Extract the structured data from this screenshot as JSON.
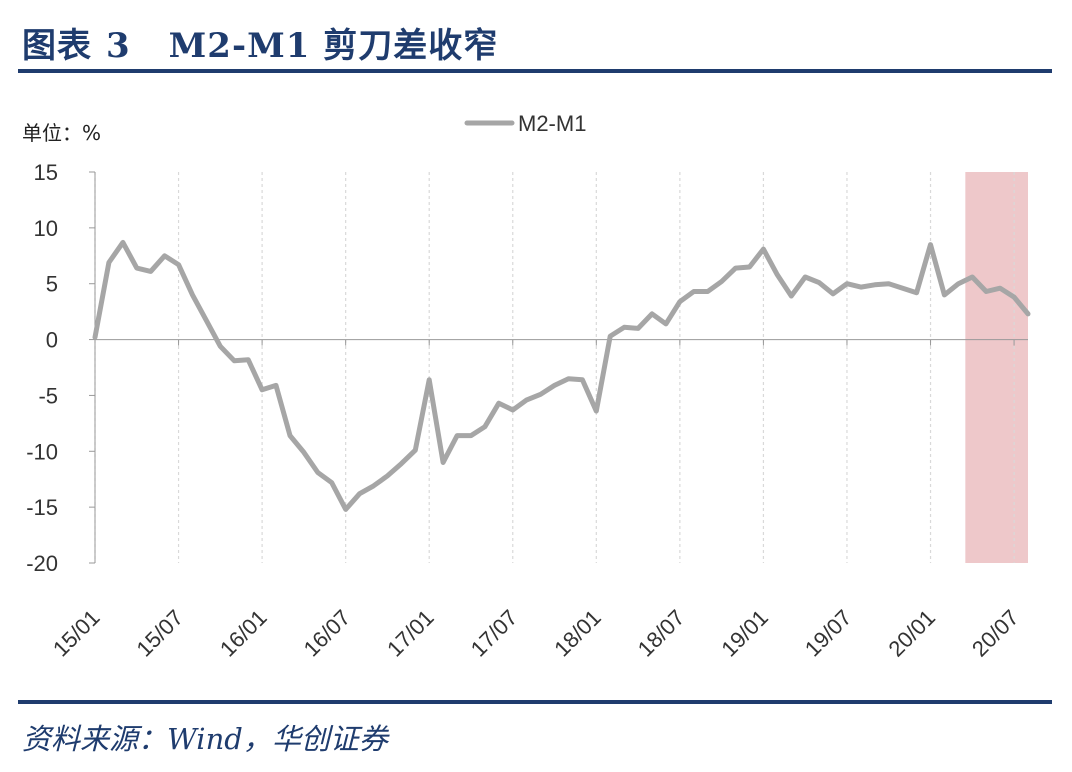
{
  "header": {
    "figure_label": "图表",
    "figure_number": "3",
    "title": "M2-M1 剪刀差收窄"
  },
  "footer": {
    "source": "资料来源：Wind，华创证券"
  },
  "colors": {
    "title": "#1f3c6e",
    "line": "#a6a6a6",
    "highlight": "#eec8ca",
    "grid": "#d9d9d9",
    "axis": "#999999"
  },
  "chart_data": {
    "type": "line",
    "title": "",
    "unit_label": "单位：%",
    "xlabel": "",
    "ylabel": "%",
    "ylim": [
      -20,
      15
    ],
    "yticks": [
      15,
      10,
      5,
      0,
      -5,
      -10,
      -15,
      -20
    ],
    "x_tick_labels": [
      "15/01",
      "15/07",
      "16/01",
      "16/07",
      "17/01",
      "17/07",
      "18/01",
      "18/07",
      "19/01",
      "19/07",
      "20/01",
      "20/07"
    ],
    "x_start": "15/01",
    "x_end": "20/08",
    "legend": {
      "entries": [
        "M2-M1"
      ],
      "position": "top-center"
    },
    "grid": {
      "vertical": true,
      "horizontal": false,
      "style": "dashed"
    },
    "highlight_range": {
      "from": "20/04",
      "to": "20/08",
      "description": "shaded period"
    },
    "series": [
      {
        "name": "M2-M1",
        "values": [
          0.2,
          6.9,
          8.7,
          6.4,
          6.1,
          7.5,
          6.7,
          4.0,
          1.7,
          -0.6,
          -1.9,
          -1.8,
          -4.5,
          -4.1,
          -8.6,
          -10.1,
          -11.9,
          -12.8,
          -15.2,
          -13.8,
          -13.1,
          -12.2,
          -11.1,
          -9.9,
          -3.6,
          -11.0,
          -8.6,
          -8.6,
          -7.8,
          -5.7,
          -6.3,
          -5.4,
          -4.9,
          -4.1,
          -3.5,
          -3.6,
          -6.4,
          0.3,
          1.1,
          1.0,
          2.3,
          1.4,
          3.4,
          4.3,
          4.3,
          5.2,
          6.4,
          6.5,
          8.1,
          5.8,
          3.9,
          5.6,
          5.1,
          4.1,
          5.0,
          4.7,
          4.9,
          5.0,
          4.6,
          4.2,
          8.5,
          4.0,
          5.0,
          5.6,
          4.3,
          4.6,
          3.8,
          2.3
        ]
      }
    ]
  }
}
